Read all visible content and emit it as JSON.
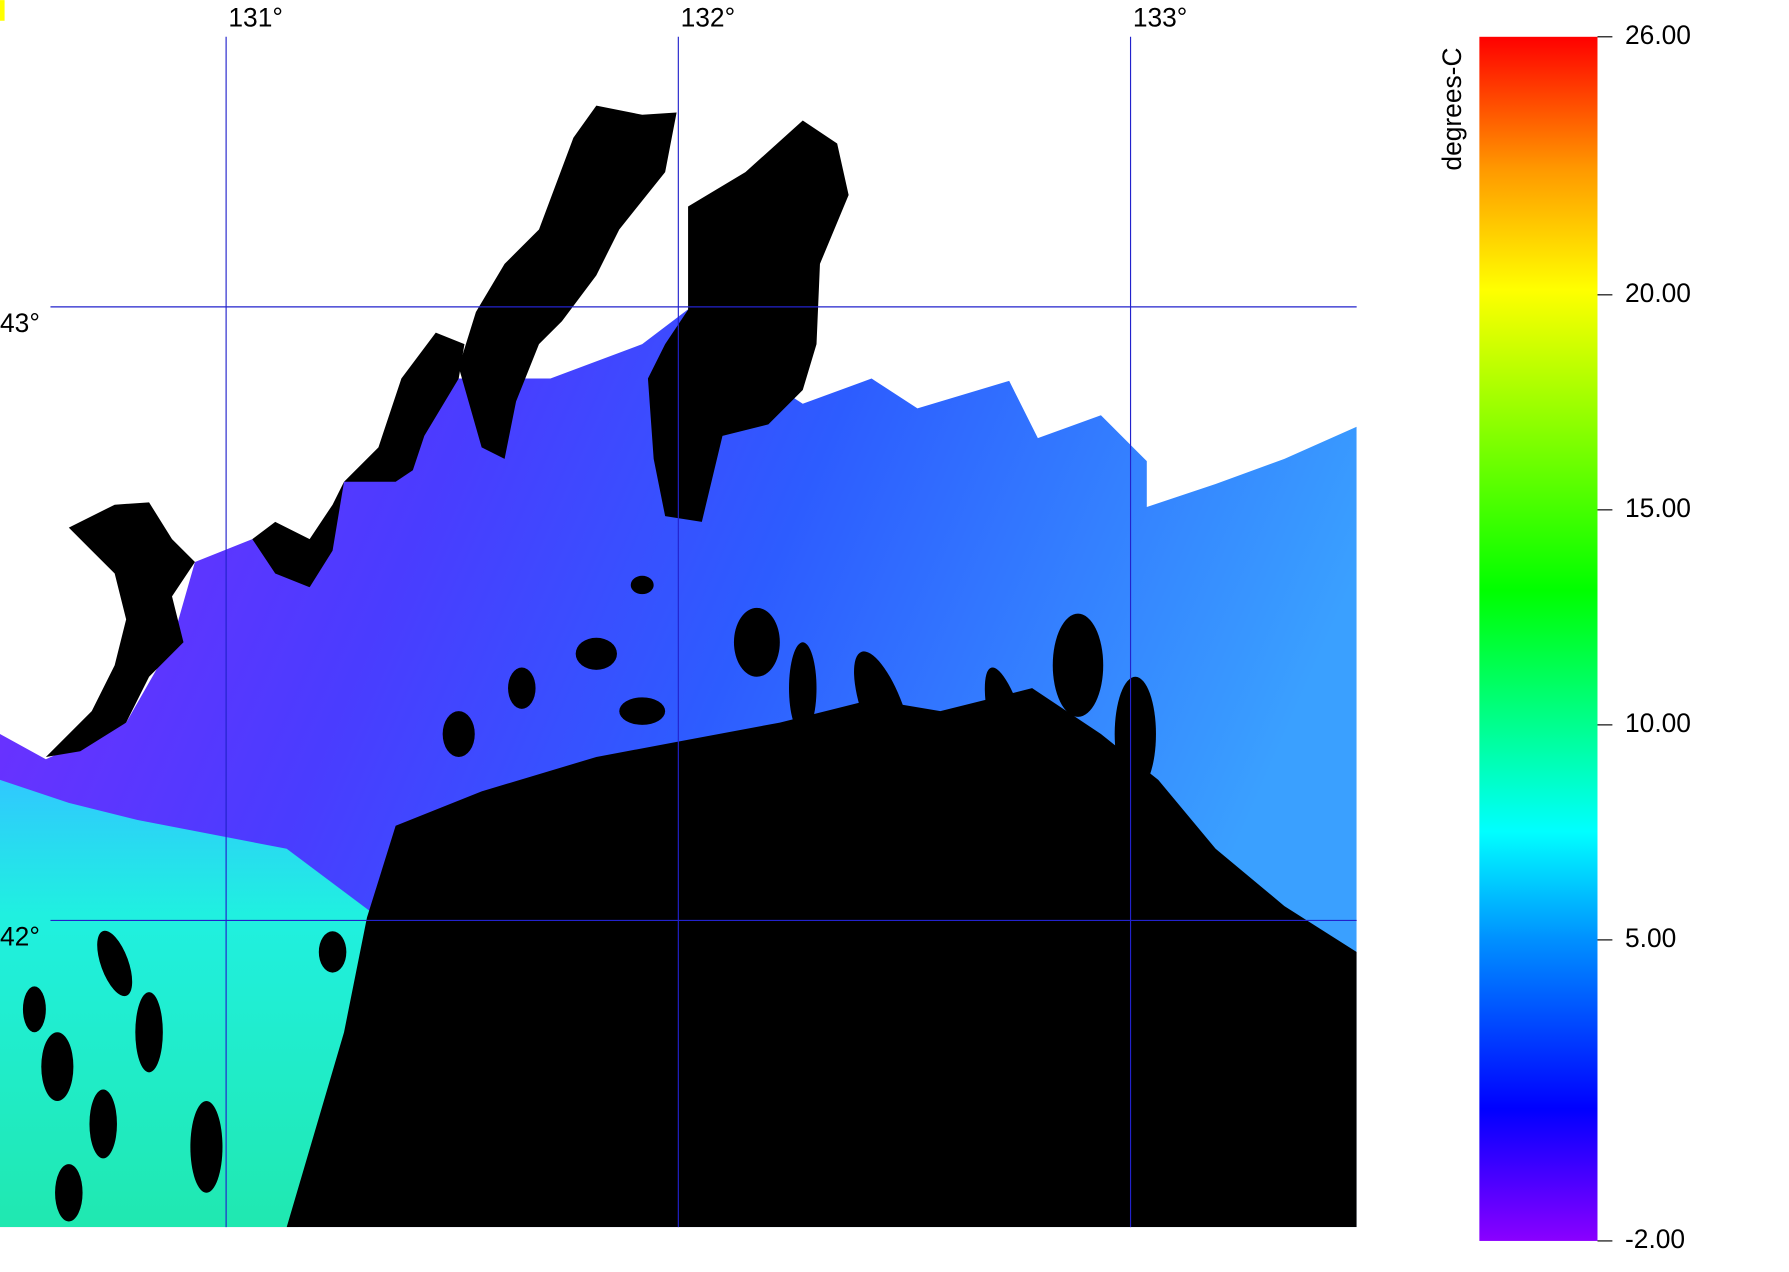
{
  "map": {
    "lon_lim": [
      130.5,
      133.5
    ],
    "lat_lim": [
      41.5,
      43.5
    ],
    "lon_ticks": [
      {
        "value": 131,
        "label": "131°"
      },
      {
        "value": 132,
        "label": "132°"
      },
      {
        "value": 133,
        "label": "133°"
      }
    ],
    "lat_ticks": [
      {
        "value": 43,
        "label": "43°"
      },
      {
        "value": 42,
        "label": "42°"
      }
    ],
    "grid_color": "#2222cc"
  },
  "colorbar": {
    "title": "degrees-C",
    "range": [
      -2,
      26
    ],
    "ticks": [
      {
        "value": 26,
        "label": "26.00"
      },
      {
        "value": 20,
        "label": "20.00"
      },
      {
        "value": 15,
        "label": "15.00"
      },
      {
        "value": 10,
        "label": "10.00"
      },
      {
        "value": 5,
        "label": "5.00"
      },
      {
        "value": -2,
        "label": "-2.00"
      }
    ]
  }
}
